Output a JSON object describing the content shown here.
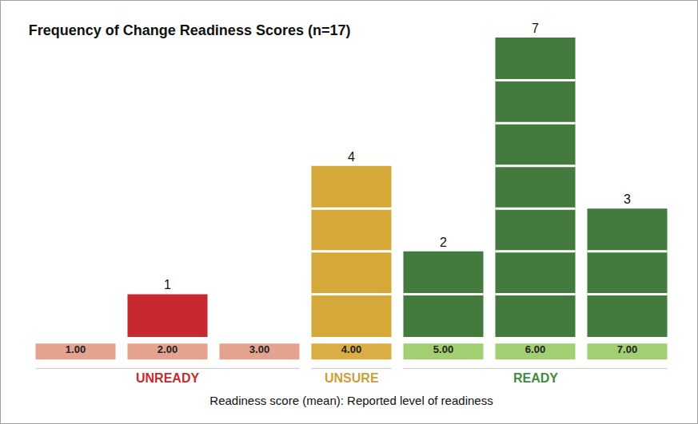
{
  "chart_data": {
    "type": "bar",
    "title": "Frequency of Change Readiness Scores (n=17)",
    "x_label": "Readiness score (mean): Reported level of readiness",
    "categories": [
      "1.00",
      "2.00",
      "3.00",
      "4.00",
      "5.00",
      "6.00",
      "7.00"
    ],
    "values": [
      0,
      1,
      0,
      4,
      2,
      7,
      3
    ],
    "value_labels": [
      null,
      "1",
      null,
      "4",
      "2",
      "7",
      "3"
    ],
    "colors": [
      "#e0a08c",
      "#c62a30",
      "#e0a08c",
      "#d4a93a",
      "#437a3d",
      "#437a3d",
      "#437a3d"
    ],
    "groups": [
      {
        "label": "UNREADY",
        "categories": [
          "1.00",
          "2.00",
          "3.00"
        ],
        "color": "#c62a30"
      },
      {
        "label": "UNSURE",
        "categories": [
          "4.00"
        ],
        "color": "#c9a13a"
      },
      {
        "label": "READY",
        "categories": [
          "5.00",
          "6.00",
          "7.00"
        ],
        "color": "#3f8a3c"
      }
    ],
    "ylim": [
      0,
      7
    ],
    "data_labels": true,
    "tick_labels": "x",
    "grid": false
  }
}
